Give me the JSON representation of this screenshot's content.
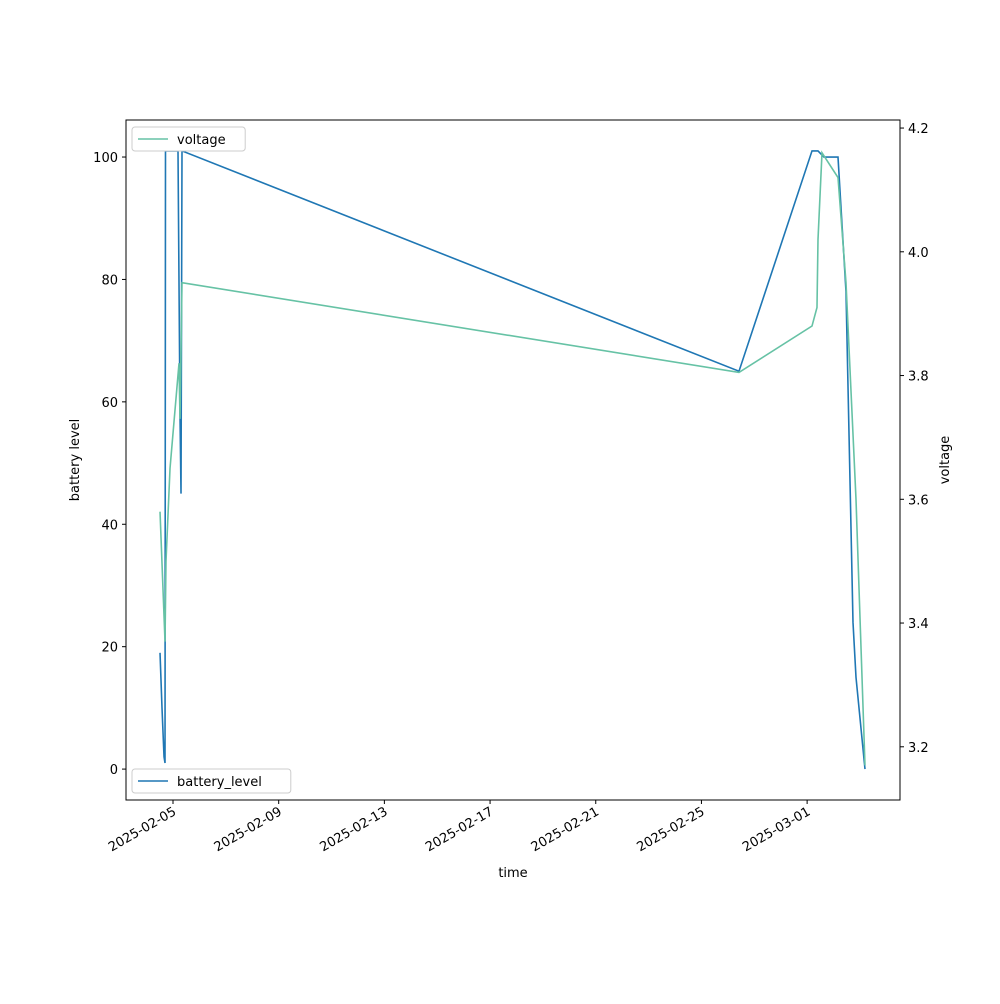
{
  "chart_data": {
    "type": "line",
    "x_label": "time",
    "y_label": "battery level",
    "y2_label": "voltage",
    "xlim": [
      "2025-02-03T05:18",
      "2025-03-04T12:22"
    ],
    "xticks": [
      "2025-02-05",
      "2025-02-09",
      "2025-02-13",
      "2025-02-17",
      "2025-02-21",
      "2025-02-25",
      "2025-03-01"
    ],
    "ylim": [
      -5.05,
      106.05
    ],
    "yticks": [
      0,
      20,
      40,
      60,
      80,
      100
    ],
    "y2lim": [
      3.114,
      4.213
    ],
    "y2ticks": [
      3.2,
      3.4,
      3.6,
      3.8,
      {
        "value": 4,
        "label": "4.0"
      },
      4.2
    ],
    "series": [
      {
        "name": "battery_level",
        "color": "#1f77b4",
        "legend": "lower left",
        "x": [
          "2025-02-04T12:12",
          "2025-02-04T14:00",
          "2025-02-04T15:50",
          "2025-02-04T16:44",
          "2025-02-04T17:10",
          "2025-02-05T04:32",
          "2025-02-05T06:21",
          "2025-02-05T07:16",
          "2025-02-05T08:10",
          "2025-02-26T10:07",
          "2025-03-01T04:26",
          "2025-03-01T09:53",
          "2025-03-01T15:20",
          "2025-03-02T04:03",
          "2025-03-02T11:19",
          "2025-03-02T17:40",
          "2025-03-02T20:24",
          "2025-03-03T04:34"
        ],
        "values": [
          19,
          10,
          2,
          1,
          101,
          101,
          58,
          45,
          101,
          65,
          101,
          101,
          100,
          100,
          78,
          24,
          15,
          0
        ]
      },
      {
        "name": "voltage",
        "color": "#66c2a5",
        "axis": "y2",
        "legend": "upper left",
        "x": [
          "2025-02-04T12:12",
          "2025-02-04T16:44",
          "2025-02-04T17:38",
          "2025-02-04T21:17",
          "2025-02-05T05:27",
          "2025-02-05T06:21",
          "2025-02-05T08:10",
          "2025-02-26T10:07",
          "2025-03-01T04:26",
          "2025-03-01T08:58",
          "2025-03-01T09:53",
          "2025-03-01T13:31",
          "2025-03-02T04:03",
          "2025-03-02T11:19",
          "2025-03-02T20:24",
          "2025-03-03T04:34"
        ],
        "values": [
          3.58,
          3.37,
          3.5,
          3.65,
          3.82,
          3.73,
          3.95,
          3.805,
          3.88,
          3.91,
          4.02,
          4.16,
          4.12,
          3.95,
          3.6,
          3.17
        ]
      }
    ]
  }
}
